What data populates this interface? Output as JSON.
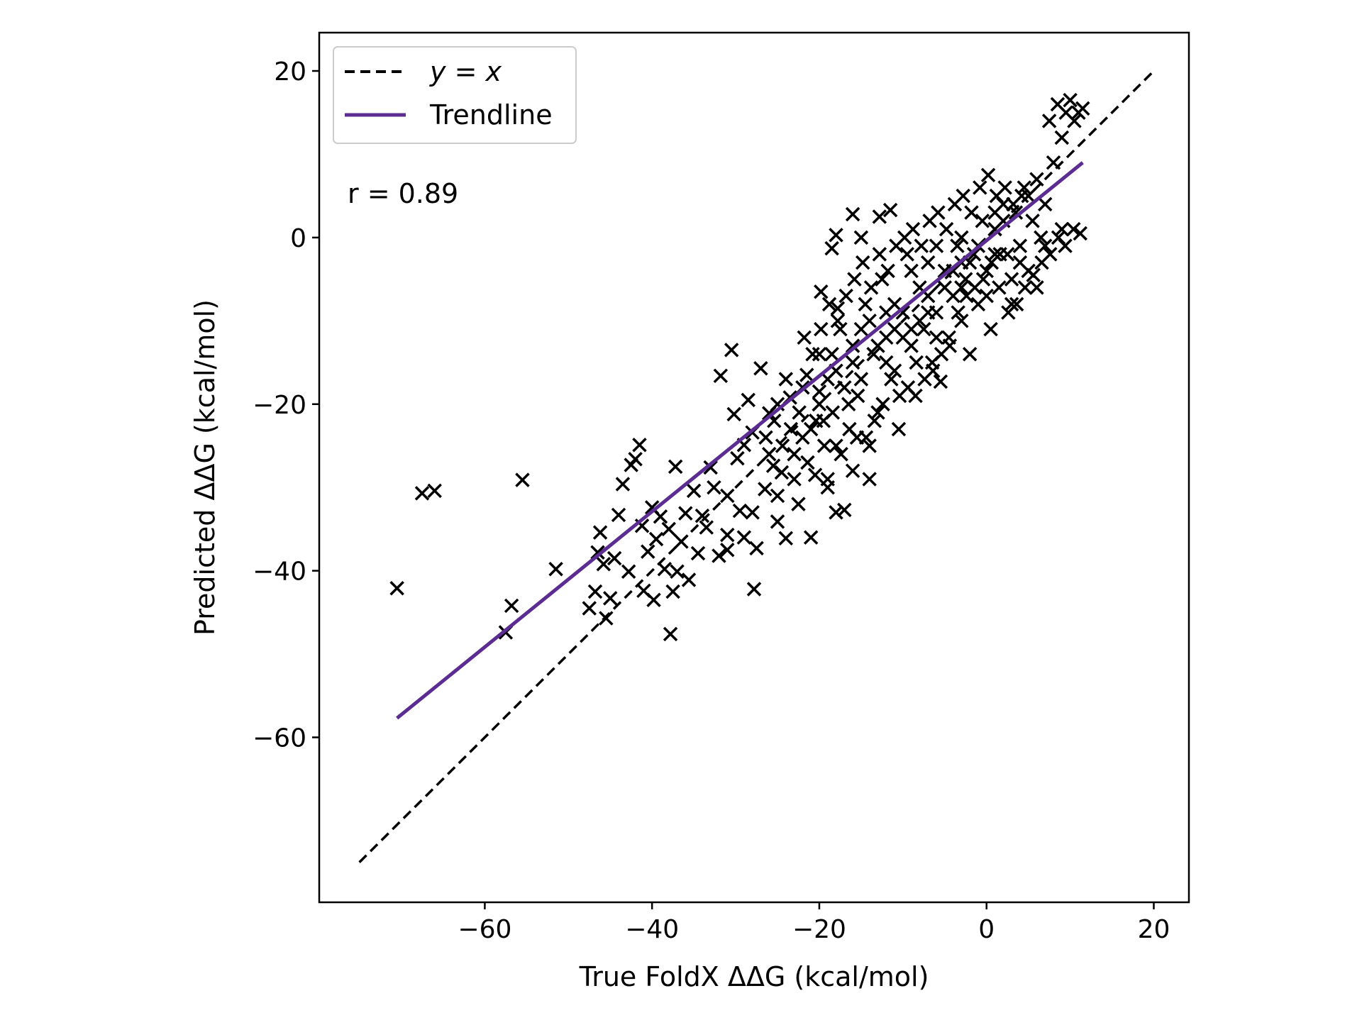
{
  "chart_data": {
    "type": "scatter",
    "title": "",
    "xlabel": "True FoldX ΔΔG (kcal/mol)",
    "ylabel": "Predicted ΔΔG (kcal/mol)",
    "xlim": [
      -79.8,
      24.2
    ],
    "ylim": [
      -79.8,
      24.6
    ],
    "xticks": [
      -60,
      -40,
      -20,
      0,
      20
    ],
    "yticks": [
      20,
      0,
      -20,
      -40,
      -60
    ],
    "xtick_labels": [
      "−60",
      "−40",
      "−20",
      "0",
      "20"
    ],
    "ytick_labels": [
      "20",
      "0",
      "−20",
      "−40",
      "−60"
    ],
    "grid": false,
    "legend": {
      "location": "upper-left",
      "entries": [
        {
          "label": "y = x",
          "style": "dashed",
          "color": "#000000"
        },
        {
          "label": "Trendline",
          "style": "solid",
          "color": "#5b2c91"
        }
      ]
    },
    "annotation": "r = 0.89",
    "marker": "x",
    "marker_color": "#000000",
    "trend_color": "#5b2c91",
    "identity_line": {
      "x": [
        -75,
        20
      ],
      "y": [
        -75,
        20
      ]
    },
    "trendline": {
      "x": [
        -70.5,
        11.5
      ],
      "y": [
        -57.7,
        9.0
      ]
    },
    "series": [
      {
        "name": "",
        "points": [
          [
            -70.5,
            -42.1
          ],
          [
            -67.5,
            -30.7
          ],
          [
            -66,
            -30.4
          ],
          [
            -55.5,
            -29.1
          ],
          [
            -51.5,
            -39.8
          ],
          [
            -57.5,
            -47.4
          ],
          [
            -56.8,
            -44.2
          ],
          [
            -47.5,
            -44.5
          ],
          [
            -46.8,
            -42.5
          ],
          [
            -46.5,
            -37.8
          ],
          [
            -46.2,
            -35.4
          ],
          [
            -45.8,
            -39.2
          ],
          [
            -45.5,
            -45.7
          ],
          [
            -45,
            -43.3
          ],
          [
            -44.5,
            -38.5
          ],
          [
            -44,
            -33.3
          ],
          [
            -43.5,
            -29.6
          ],
          [
            -42.8,
            -40.1
          ],
          [
            -42.5,
            -27.3
          ],
          [
            -42,
            -26.6
          ],
          [
            -41.5,
            -24.9
          ],
          [
            -41.2,
            -34.6
          ],
          [
            -41,
            -42.4
          ],
          [
            -40.5,
            -37.7
          ],
          [
            -40,
            -32.4
          ],
          [
            -39.8,
            -43.5
          ],
          [
            -39.5,
            -36.2
          ],
          [
            -39,
            -33.5
          ],
          [
            -38.5,
            -39.8
          ],
          [
            -38,
            -35
          ],
          [
            -37.8,
            -47.6
          ],
          [
            -37.5,
            -42.5
          ],
          [
            -37.2,
            -27.5
          ],
          [
            -37,
            -40.1
          ],
          [
            -36.5,
            -36.5
          ],
          [
            -36,
            -33.1
          ],
          [
            -35.6,
            -41.1
          ],
          [
            -35,
            -30.4
          ],
          [
            -34.5,
            -37.9
          ],
          [
            -34,
            -33.4
          ],
          [
            -33.5,
            -34.8
          ],
          [
            -33,
            -27.6
          ],
          [
            -32.6,
            -30
          ],
          [
            -32,
            -38.2
          ],
          [
            -31.8,
            -16.6
          ],
          [
            -31,
            -35.7
          ],
          [
            -30.5,
            -13.5
          ],
          [
            -30.2,
            -21.2
          ],
          [
            -29.8,
            -26.5
          ],
          [
            -29.5,
            -32.8
          ],
          [
            -29,
            -24.9
          ],
          [
            -28.5,
            -19.5
          ],
          [
            -28,
            -23.4
          ],
          [
            -27.8,
            -42.2
          ],
          [
            -27.5,
            -37.3
          ],
          [
            -27,
            -15.7
          ],
          [
            -26.5,
            -30.2
          ],
          [
            -26,
            -21.1
          ],
          [
            -25.5,
            -27.4
          ],
          [
            -25,
            -34.1
          ],
          [
            -24.5,
            -28.2
          ],
          [
            -24,
            -36.1
          ],
          [
            -23.5,
            -19.2
          ],
          [
            -23,
            -26
          ],
          [
            -22.5,
            -32
          ],
          [
            -22,
            -24
          ],
          [
            -21.5,
            -16.5
          ],
          [
            -21,
            -36
          ],
          [
            -20.5,
            -28.5
          ],
          [
            -20,
            -18.5
          ],
          [
            -19.8,
            -6.5
          ],
          [
            -19.5,
            -22
          ],
          [
            -19,
            -29
          ],
          [
            -18.5,
            -14
          ],
          [
            -18,
            -25
          ],
          [
            -17.5,
            -11
          ],
          [
            -17,
            -32.7
          ],
          [
            -16.5,
            -20
          ],
          [
            -16,
            -13
          ],
          [
            -15.5,
            -24
          ],
          [
            -15,
            -17
          ],
          [
            -14.5,
            -8
          ],
          [
            -14,
            -29
          ],
          [
            -13.5,
            -14
          ],
          [
            -13,
            -21
          ],
          [
            -12.8,
            2.5
          ],
          [
            -12.5,
            -5
          ],
          [
            -12,
            -12
          ],
          [
            -11.5,
            3.3
          ],
          [
            -11,
            -16
          ],
          [
            -10.5,
            -23
          ],
          [
            -10,
            -9
          ],
          [
            -9.5,
            -2
          ],
          [
            -9,
            -13
          ],
          [
            -8.5,
            -19
          ],
          [
            -8,
            -6
          ],
          [
            -7.5,
            -11
          ],
          [
            -7,
            -3
          ],
          [
            -6.5,
            -15
          ],
          [
            -6,
            -9
          ],
          [
            -5.5,
            -17.3
          ],
          [
            -5,
            -4
          ],
          [
            -4.5,
            -12
          ],
          [
            -4,
            -7
          ],
          [
            -3.5,
            -1
          ],
          [
            -3,
            -10
          ],
          [
            -2.5,
            -5
          ],
          [
            -2,
            -14
          ],
          [
            -1.5,
            -2
          ],
          [
            -1,
            -8
          ],
          [
            -0.5,
            2
          ],
          [
            0,
            -4
          ],
          [
            0.5,
            -11
          ],
          [
            1,
            1
          ],
          [
            1.5,
            -6
          ],
          [
            2,
            4
          ],
          [
            2.5,
            -2
          ],
          [
            3,
            -8
          ],
          [
            3.5,
            3
          ],
          [
            4,
            -1
          ],
          [
            4.5,
            6
          ],
          [
            5,
            -4
          ],
          [
            5.5,
            2
          ],
          [
            6,
            7
          ],
          [
            6.5,
            0
          ],
          [
            7,
            4
          ],
          [
            7.5,
            14
          ],
          [
            8,
            9
          ],
          [
            8.5,
            16
          ],
          [
            9,
            12
          ],
          [
            9.5,
            15
          ],
          [
            10,
            16.5
          ],
          [
            10.5,
            14
          ],
          [
            11,
            15
          ],
          [
            11.5,
            15.5
          ],
          [
            11.2,
            0.5
          ],
          [
            10.4,
            1
          ],
          [
            9.4,
            -1
          ],
          [
            8.6,
            0
          ],
          [
            7.6,
            -2
          ],
          [
            6.6,
            -3
          ],
          [
            5.6,
            -4.5
          ],
          [
            4.6,
            -6
          ],
          [
            3.6,
            -8
          ],
          [
            2.6,
            -9
          ],
          [
            1.6,
            -2
          ],
          [
            0.6,
            -3
          ],
          [
            -0.4,
            -5
          ],
          [
            -1.4,
            -6
          ],
          [
            -2.4,
            -7
          ],
          [
            -3.4,
            -9
          ],
          [
            -4.4,
            -13
          ],
          [
            -5.4,
            -14
          ],
          [
            -6.4,
            -16
          ],
          [
            -7.4,
            -17
          ],
          [
            -8.4,
            -15
          ],
          [
            -9.4,
            -18
          ],
          [
            -10.4,
            -19
          ],
          [
            -11.4,
            -17
          ],
          [
            -12.4,
            -20
          ],
          [
            -13.4,
            -22
          ],
          [
            -14.4,
            -24
          ],
          [
            -15.4,
            -19
          ],
          [
            -16.4,
            -23
          ],
          [
            -17.4,
            -26
          ],
          [
            -18.4,
            -21
          ],
          [
            -19.4,
            -25
          ],
          [
            -20.4,
            -22
          ],
          [
            -21.4,
            -27
          ],
          [
            -22.4,
            -21
          ],
          [
            -23.4,
            -23
          ],
          [
            -24.4,
            -25
          ],
          [
            -25.4,
            -22
          ],
          [
            -26.4,
            -24
          ],
          [
            -21.8,
            -12
          ],
          [
            -20.8,
            -14
          ],
          [
            -19.8,
            -11
          ],
          [
            -18.8,
            -8
          ],
          [
            -17.8,
            -10
          ],
          [
            -16.8,
            -7
          ],
          [
            -15.8,
            -5
          ],
          [
            -14.8,
            -3
          ],
          [
            -13.8,
            -6
          ],
          [
            -12.8,
            -2
          ],
          [
            -11.8,
            -4
          ],
          [
            -10.8,
            -1
          ],
          [
            -9.8,
            0
          ],
          [
            -8.8,
            1
          ],
          [
            -7.8,
            -1
          ],
          [
            -6.8,
            2
          ],
          [
            -5.8,
            3
          ],
          [
            -4.8,
            1
          ],
          [
            -3.8,
            4
          ],
          [
            -2.8,
            5
          ],
          [
            -1.8,
            3
          ],
          [
            -0.8,
            6
          ],
          [
            0.2,
            7.5
          ],
          [
            1.2,
            5
          ],
          [
            2.2,
            6
          ],
          [
            3.2,
            4
          ],
          [
            4.2,
            5
          ],
          [
            -16,
            2.8
          ],
          [
            -18,
            0.3
          ],
          [
            -18.5,
            -1.3
          ],
          [
            -17.8,
            -8.5
          ],
          [
            -15,
            0
          ],
          [
            -20,
            -14
          ],
          [
            -14,
            -10
          ],
          [
            -9,
            -4
          ],
          [
            -6,
            -1
          ],
          [
            -3,
            0
          ],
          [
            -22,
            -18
          ],
          [
            -18,
            -16
          ],
          [
            -12,
            -9
          ],
          [
            -10,
            -12
          ],
          [
            -7,
            -7
          ],
          [
            -4,
            -4
          ],
          [
            -1,
            -1
          ],
          [
            2,
            2
          ],
          [
            5,
            5
          ],
          [
            -25,
            -20
          ],
          [
            -21,
            -23
          ],
          [
            -17,
            -18
          ],
          [
            -13,
            -13
          ],
          [
            -11,
            -8
          ],
          [
            -8,
            -10
          ],
          [
            -5,
            -6
          ],
          [
            -2,
            -3
          ],
          [
            1,
            -2
          ],
          [
            4,
            -3
          ],
          [
            7,
            -1
          ],
          [
            9,
            1
          ],
          [
            -24,
            -17
          ],
          [
            -20,
            -20
          ],
          [
            -16,
            -15
          ],
          [
            -12,
            -15
          ],
          [
            -9,
            -11
          ],
          [
            -6,
            -12
          ],
          [
            -3,
            -6
          ],
          [
            0,
            -7
          ],
          [
            3,
            -5
          ],
          [
            6,
            -6
          ],
          [
            -19,
            -17
          ],
          [
            -15,
            -11
          ],
          [
            -11,
            -11
          ],
          [
            -7,
            -9
          ],
          [
            -3,
            -3
          ],
          [
            1,
            3
          ],
          [
            -26,
            -26
          ],
          [
            -23,
            -29
          ],
          [
            -19,
            -30
          ],
          [
            -16,
            -28
          ],
          [
            -14,
            -25
          ],
          [
            -18,
            -33
          ],
          [
            -31,
            -31
          ],
          [
            -28,
            -33
          ],
          [
            -29,
            -36
          ],
          [
            -31,
            -37.5
          ],
          [
            -25,
            -31
          ]
        ]
      }
    ]
  }
}
